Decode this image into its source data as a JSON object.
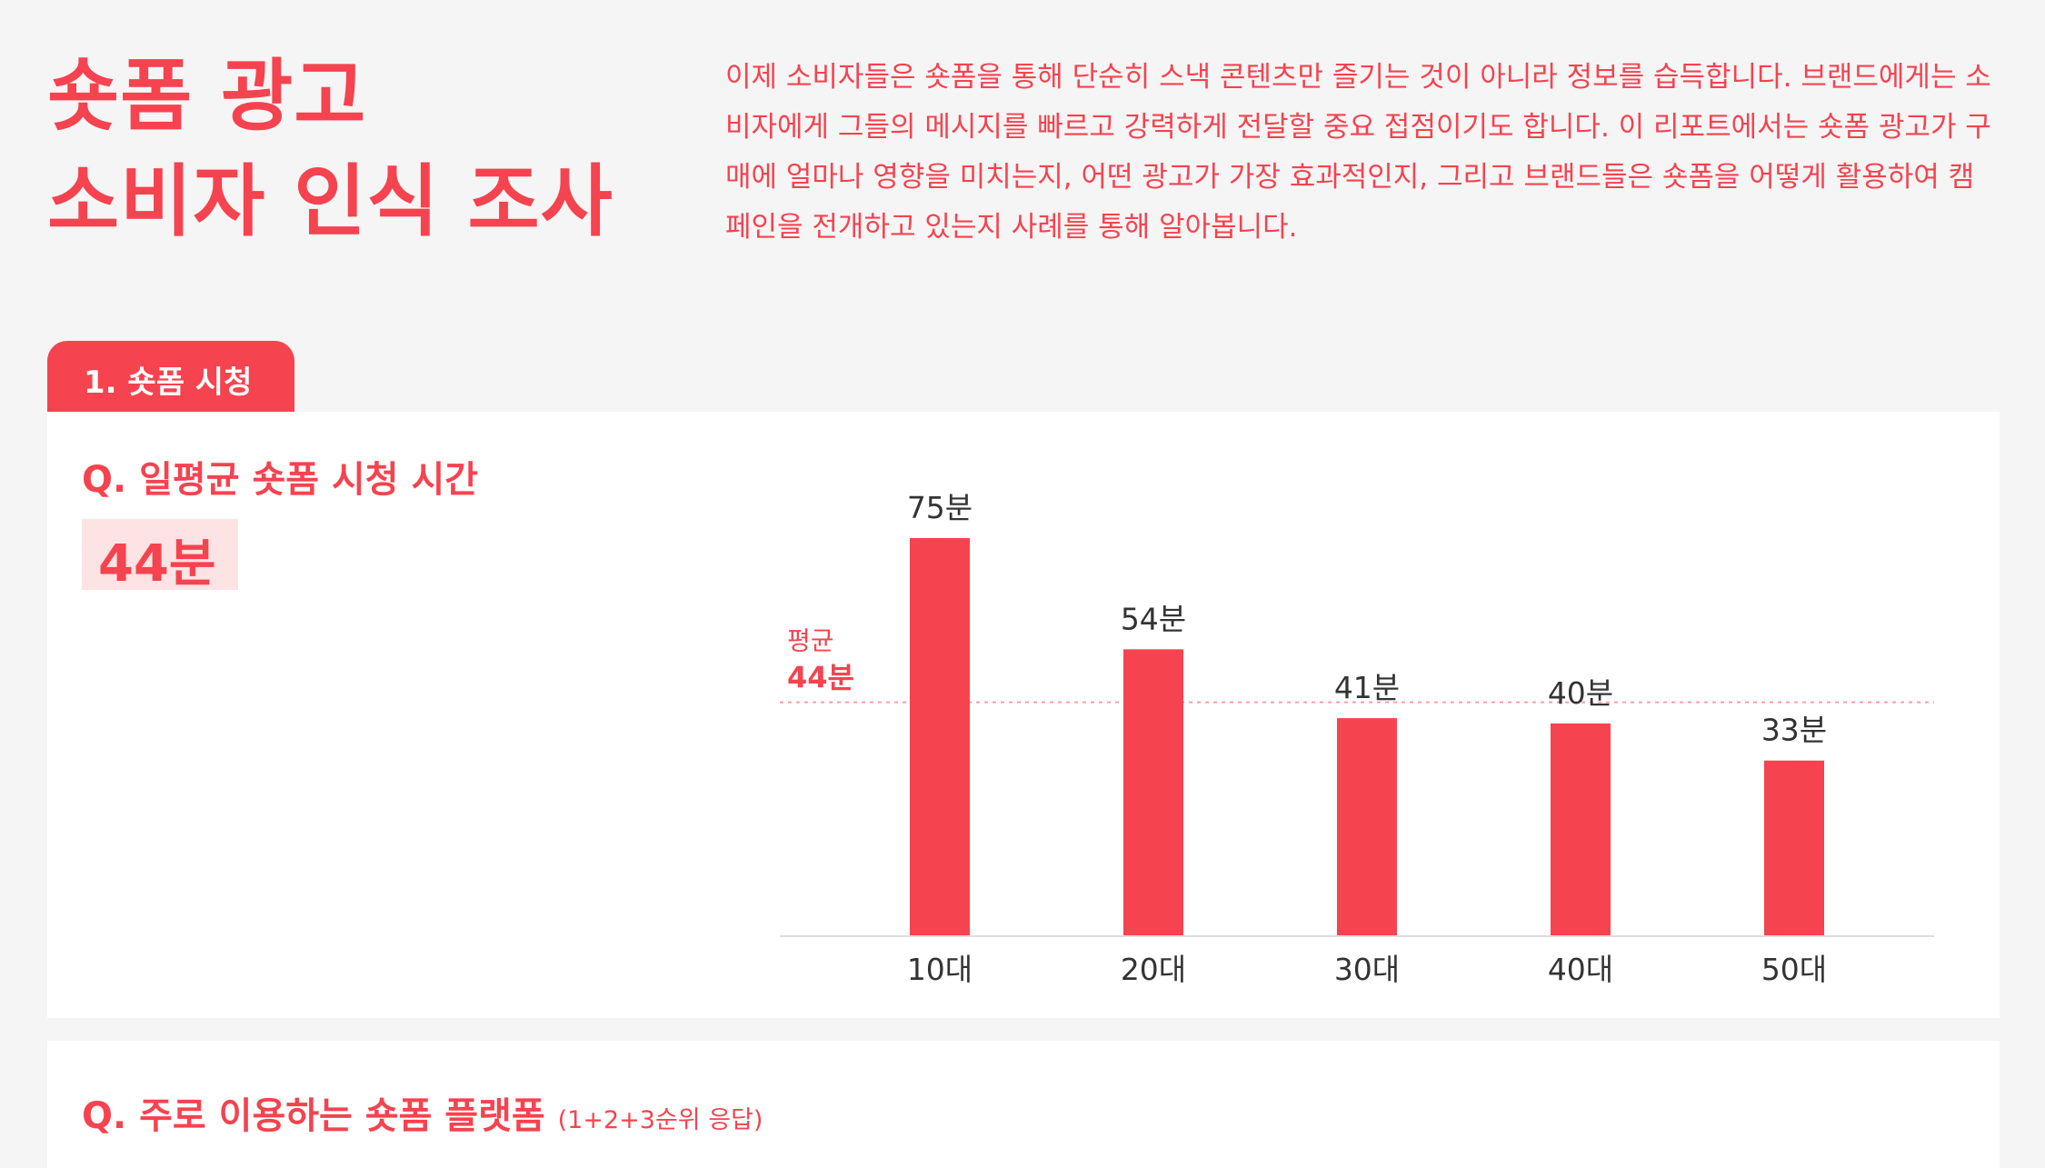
{
  "header": {
    "title_line1": "숏폼 광고",
    "title_line2": "소비자 인식 조사",
    "intro": "이제 소비자들은 숏폼을 통해 단순히 스낵 콘텐츠만 즐기는 것이 아니라 정보를 습득합니다. 브랜드에게는 소비자에게 그들의 메시지를 빠르고 강력하게 전달할 중요 접점이기도 합니다. 이 리포트에서는 숏폼 광고가 구매에 얼마나 영향을 미치는지, 어떤 광고가 가장 효과적인지, 그리고 브랜드들은 숏폼을 어떻게 활용하여 캠페인을 전개하고 있는지 사례를 통해 알아봅니다."
  },
  "section": {
    "tab_label": "1. 숏폼 시청"
  },
  "question1": {
    "title": "Q. 일평균 숏폼 시청 시간",
    "highlight": "44분"
  },
  "question2": {
    "title": "Q. 주로 이용하는 숏폼 플랫폼",
    "note": "(1+2+3순위 응답)"
  },
  "chart_data": {
    "type": "bar",
    "categories": [
      "10대",
      "20대",
      "30대",
      "40대",
      "50대"
    ],
    "values": [
      75,
      54,
      41,
      40,
      33
    ],
    "value_labels": [
      "75분",
      "54분",
      "41분",
      "40분",
      "33분"
    ],
    "average": {
      "value": 44,
      "label": "평균",
      "value_label": "44분"
    },
    "title": "",
    "xlabel": "",
    "ylabel": "",
    "ylim": [
      0,
      75
    ],
    "grid": false,
    "bar_color": "#f5434f"
  }
}
